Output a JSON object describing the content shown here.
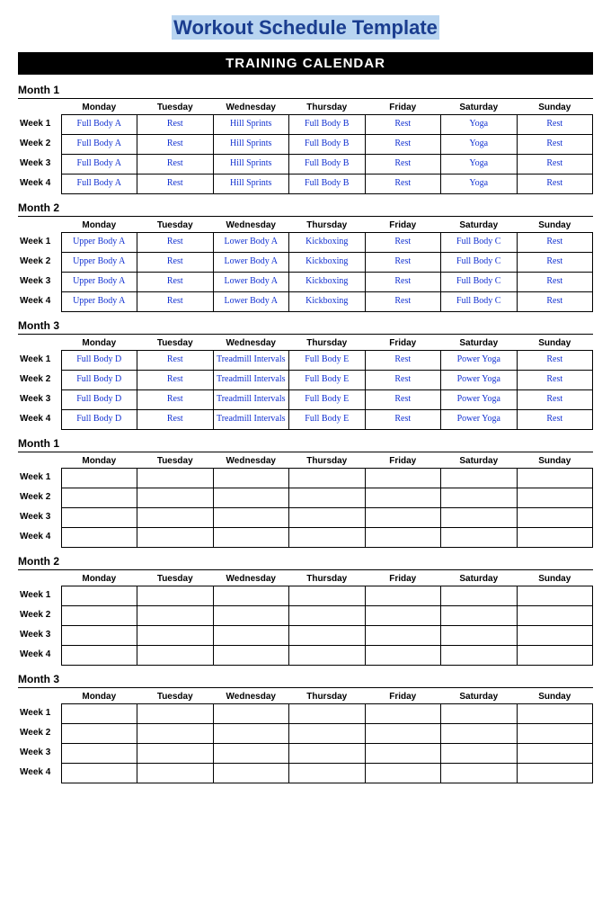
{
  "title": "Workout Schedule Template",
  "banner": "TRAINING CALENDAR",
  "colors": {
    "title_text": "#1a3d8f",
    "title_highlight": "#b8d4f0",
    "banner_bg": "#000000",
    "banner_text": "#ffffff",
    "workout_text": "#1030d0",
    "border": "#000000"
  },
  "day_headers": [
    "Monday",
    "Tuesday",
    "Wednesday",
    "Thursday",
    "Friday",
    "Saturday",
    "Sunday"
  ],
  "week_labels": [
    "Week 1",
    "Week 2",
    "Week 3",
    "Week 4"
  ],
  "months": [
    {
      "title": "Month 1",
      "rows": [
        [
          "Full Body A",
          "Rest",
          "Hill Sprints",
          "Full Body B",
          "Rest",
          "Yoga",
          "Rest"
        ],
        [
          "Full Body A",
          "Rest",
          "Hill Sprints",
          "Full Body B",
          "Rest",
          "Yoga",
          "Rest"
        ],
        [
          "Full Body A",
          "Rest",
          "Hill Sprints",
          "Full Body B",
          "Rest",
          "Yoga",
          "Rest"
        ],
        [
          "Full Body A",
          "Rest",
          "Hill Sprints",
          "Full Body B",
          "Rest",
          "Yoga",
          "Rest"
        ]
      ]
    },
    {
      "title": "Month 2",
      "rows": [
        [
          "Upper Body A",
          "Rest",
          "Lower Body A",
          "Kickboxing",
          "Rest",
          "Full Body C",
          "Rest"
        ],
        [
          "Upper Body A",
          "Rest",
          "Lower Body A",
          "Kickboxing",
          "Rest",
          "Full Body C",
          "Rest"
        ],
        [
          "Upper Body A",
          "Rest",
          "Lower Body A",
          "Kickboxing",
          "Rest",
          "Full Body C",
          "Rest"
        ],
        [
          "Upper Body A",
          "Rest",
          "Lower Body A",
          "Kickboxing",
          "Rest",
          "Full Body C",
          "Rest"
        ]
      ]
    },
    {
      "title": "Month 3",
      "rows": [
        [
          "Full Body D",
          "Rest",
          "Treadmill Intervals",
          "Full Body E",
          "Rest",
          "Power Yoga",
          "Rest"
        ],
        [
          "Full Body D",
          "Rest",
          "Treadmill Intervals",
          "Full Body E",
          "Rest",
          "Power Yoga",
          "Rest"
        ],
        [
          "Full Body D",
          "Rest",
          "Treadmill Intervals",
          "Full Body E",
          "Rest",
          "Power Yoga",
          "Rest"
        ],
        [
          "Full Body D",
          "Rest",
          "Treadmill Intervals",
          "Full Body E",
          "Rest",
          "Power Yoga",
          "Rest"
        ]
      ]
    },
    {
      "title": "Month 1",
      "rows": [
        [
          "",
          "",
          "",
          "",
          "",
          "",
          ""
        ],
        [
          "",
          "",
          "",
          "",
          "",
          "",
          ""
        ],
        [
          "",
          "",
          "",
          "",
          "",
          "",
          ""
        ],
        [
          "",
          "",
          "",
          "",
          "",
          "",
          ""
        ]
      ]
    },
    {
      "title": "Month 2",
      "rows": [
        [
          "",
          "",
          "",
          "",
          "",
          "",
          ""
        ],
        [
          "",
          "",
          "",
          "",
          "",
          "",
          ""
        ],
        [
          "",
          "",
          "",
          "",
          "",
          "",
          ""
        ],
        [
          "",
          "",
          "",
          "",
          "",
          "",
          ""
        ]
      ]
    },
    {
      "title": "Month 3",
      "rows": [
        [
          "",
          "",
          "",
          "",
          "",
          "",
          ""
        ],
        [
          "",
          "",
          "",
          "",
          "",
          "",
          ""
        ],
        [
          "",
          "",
          "",
          "",
          "",
          "",
          ""
        ],
        [
          "",
          "",
          "",
          "",
          "",
          "",
          ""
        ]
      ]
    }
  ]
}
